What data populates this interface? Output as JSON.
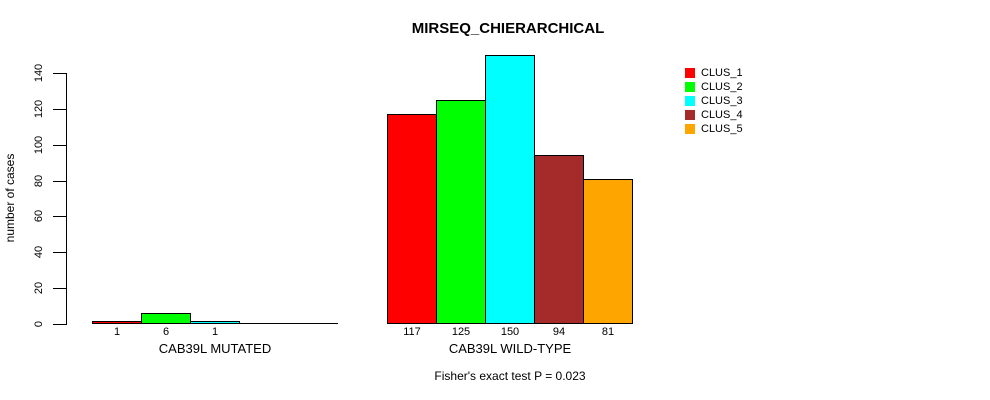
{
  "chart_data": {
    "type": "bar",
    "title": "MIRSEQ_CHIERARCHICAL",
    "ylabel": "number of cases",
    "xlabel": "",
    "footnote": "Fisher's exact test P = 0.023",
    "ylim": [
      0,
      150
    ],
    "yticks": [
      0,
      20,
      40,
      60,
      80,
      100,
      120,
      140
    ],
    "grid": false,
    "legend_position": "top-right",
    "categories": [
      "CAB39L MUTATED",
      "CAB39L WILD-TYPE"
    ],
    "series": [
      {
        "name": "CLUS_1",
        "color": "#FF0000",
        "values": [
          1,
          117
        ]
      },
      {
        "name": "CLUS_2",
        "color": "#00FF00",
        "values": [
          6,
          125
        ]
      },
      {
        "name": "CLUS_3",
        "color": "#00FFFF",
        "values": [
          1,
          150
        ]
      },
      {
        "name": "CLUS_4",
        "color": "#A52A2A",
        "values": [
          0,
          94
        ]
      },
      {
        "name": "CLUS_5",
        "color": "#FFA500",
        "values": [
          0,
          81
        ]
      }
    ],
    "bar_value_labels": [
      [
        "1",
        "6",
        "1",
        "",
        ""
      ],
      [
        "117",
        "125",
        "150",
        "94",
        "81"
      ]
    ]
  }
}
